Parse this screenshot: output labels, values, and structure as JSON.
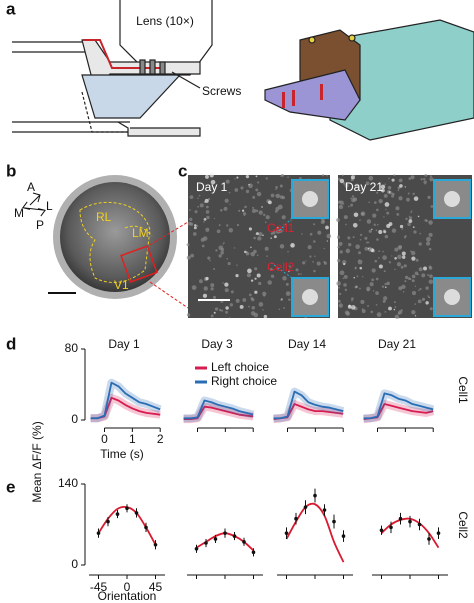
{
  "panel_labels": {
    "a": "a",
    "b": "b",
    "c": "c",
    "d": "d",
    "e": "e"
  },
  "schematic": {
    "lens": "Lens (10×)",
    "screws": "Screws"
  },
  "window": {
    "compass": {
      "anterior": "A",
      "lateral": "L",
      "posterior": "P",
      "medial": "M"
    },
    "areas": [
      "RL",
      "LM",
      "V1"
    ]
  },
  "imaging": {
    "days": [
      "Day 1",
      "Day 21"
    ],
    "cells": [
      "Cell1",
      "Cell2"
    ]
  },
  "charts": [
    {
      "type": "line",
      "cell": "Cell1",
      "ylabel": "Mean ΔF/F (%)",
      "xlabel": "Time (s)",
      "ylim": [
        0,
        80
      ],
      "yticks": [
        0,
        80
      ],
      "xlim": [
        -0.7,
        2.1
      ],
      "xticks": [
        0,
        1,
        2
      ],
      "x": [
        -0.5,
        -0.25,
        0,
        0.25,
        0.5,
        0.75,
        1,
        1.25,
        1.5,
        1.75,
        2
      ],
      "series": [
        {
          "name": "Left choice",
          "color": "#d81b50"
        },
        {
          "name": "Right choice",
          "color": "#2a6db5"
        }
      ],
      "panels": [
        {
          "title": "Day 1",
          "values": [
            [
              2,
              2,
              4,
              25,
              22,
              17,
              13,
              10,
              8,
              7,
              6
            ],
            [
              2,
              2,
              5,
              42,
              38,
              30,
              25,
              20,
              18,
              15,
              12
            ]
          ]
        },
        {
          "title": "Day 3",
          "values": [
            [
              1,
              1,
              2,
              15,
              14,
              12,
              10,
              8,
              6,
              5,
              4
            ],
            [
              2,
              2,
              3,
              22,
              20,
              17,
              15,
              13,
              10,
              8,
              6
            ]
          ]
        },
        {
          "title": "Day 14",
          "values": [
            [
              1,
              2,
              3,
              18,
              15,
              12,
              10,
              10,
              9,
              8,
              7
            ],
            [
              2,
              2,
              4,
              32,
              28,
              20,
              17,
              15,
              14,
              12,
              10
            ]
          ]
        },
        {
          "title": "Day 21",
          "values": [
            [
              1,
              2,
              3,
              18,
              16,
              14,
              12,
              10,
              9,
              8,
              10
            ],
            [
              2,
              2,
              4,
              30,
              28,
              24,
              22,
              18,
              16,
              14,
              12
            ]
          ]
        }
      ]
    },
    {
      "type": "scatter",
      "cell": "Cell2",
      "xlabel": "Orientation",
      "ylim": [
        0,
        140
      ],
      "yticks": [
        0,
        140
      ],
      "xlim": [
        -60,
        60
      ],
      "xticks": [
        -45,
        0,
        45
      ],
      "x": [
        -45,
        -30,
        -15,
        0,
        15,
        30,
        45
      ],
      "fit_color": "#d81b30",
      "panels": [
        {
          "values": [
            55,
            75,
            88,
            98,
            90,
            65,
            35
          ],
          "errors": [
            8,
            8,
            7,
            7,
            8,
            8,
            8
          ],
          "fit": [
            55,
            80,
            97,
            100,
            90,
            65,
            35
          ]
        },
        {
          "values": [
            28,
            38,
            45,
            55,
            50,
            40,
            22
          ],
          "errors": [
            7,
            7,
            7,
            8,
            7,
            7,
            7
          ],
          "fit": [
            30,
            40,
            50,
            55,
            50,
            40,
            25
          ]
        },
        {
          "values": [
            55,
            80,
            100,
            120,
            95,
            75,
            50
          ],
          "errors": [
            10,
            10,
            12,
            12,
            10,
            12,
            10
          ],
          "fit": [
            45,
            75,
            100,
            105,
            85,
            40,
            5
          ]
        },
        {
          "values": [
            60,
            65,
            80,
            75,
            70,
            45,
            55
          ],
          "errors": [
            8,
            10,
            10,
            10,
            10,
            10,
            10
          ],
          "fit": [
            55,
            70,
            78,
            80,
            72,
            55,
            30
          ]
        }
      ]
    }
  ]
}
